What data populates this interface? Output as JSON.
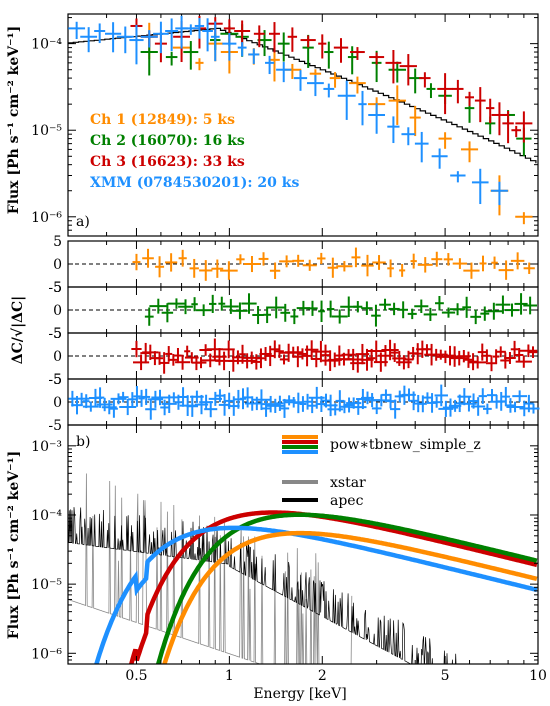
{
  "chart_data": [
    {
      "type": "scatter",
      "panel_label": "a)",
      "ylabel": "Flux [Ph s⁻¹ cm⁻² keV⁻¹]",
      "xscale": "log",
      "yscale": "log",
      "xlim": [
        0.3,
        10
      ],
      "ylim": [
        6e-07,
        0.00022
      ],
      "y_tick_labels": [
        "10⁻⁴",
        "10⁻⁵",
        "10⁻⁶"
      ],
      "y_tick_values": [
        0.0001,
        1e-05,
        1e-06
      ],
      "legend_placement": "lower-left",
      "series": [
        {
          "name": "Ch 1 (12849): 5 ks",
          "color": "#ff8c00",
          "x": [
            0.55,
            0.7,
            0.8,
            0.9,
            1.0,
            1.2,
            1.4,
            1.6,
            1.9,
            2.2,
            2.6,
            3.0,
            3.5,
            4.0,
            5.0,
            6.0,
            7.5,
            9.0
          ],
          "y": [
            0.00012,
            9e-05,
            6e-05,
            0.0001,
            8e-05,
            7.5e-05,
            6.5e-05,
            5e-05,
            4.5e-05,
            4e-05,
            3.5e-05,
            2e-05,
            2.2e-05,
            1.4e-05,
            8e-06,
            6e-06,
            2e-06,
            1e-06
          ]
        },
        {
          "name": "Ch 2 (16070): 16 ks",
          "color": "#008000",
          "x": [
            0.55,
            0.65,
            0.75,
            0.9,
            1.0,
            1.1,
            1.3,
            1.5,
            1.8,
            2.1,
            2.5,
            3.0,
            3.5,
            4.0,
            4.5,
            5.0,
            6.0,
            7.0,
            8.0,
            9.0
          ],
          "y": [
            8e-05,
            7e-05,
            8e-05,
            0.00011,
            0.00013,
            0.00012,
            0.00011,
            0.0001,
            9e-05,
            8e-05,
            7e-05,
            6e-05,
            5e-05,
            4e-05,
            3e-05,
            2.5e-05,
            1.8e-05,
            1.2e-05,
            1.5e-05,
            8e-06
          ]
        },
        {
          "name": "Ch 3 (16623): 33 ks",
          "color": "#cc0000",
          "x": [
            0.5,
            0.55,
            0.6,
            0.7,
            0.8,
            0.9,
            1.0,
            1.1,
            1.25,
            1.4,
            1.6,
            1.8,
            2.0,
            2.3,
            2.6,
            3.0,
            3.4,
            3.8,
            4.3,
            5.0,
            5.5,
            6.0,
            6.5,
            7.0,
            7.5,
            8.0,
            8.5,
            9.0
          ],
          "y": [
            0.00016,
            0.00012,
            0.0001,
            0.00012,
            0.00015,
            0.00017,
            0.00015,
            0.00014,
            0.00013,
            0.00013,
            0.00012,
            0.00011,
            0.0001,
            9e-05,
            8e-05,
            7e-05,
            6e-05,
            5.5e-05,
            4e-05,
            3e-05,
            3e-05,
            2.4e-05,
            2.2e-05,
            1.8e-05,
            1.5e-05,
            1.2e-05,
            1e-05,
            1.2e-05
          ]
        },
        {
          "name": "XMM (0784530201): 20 ks",
          "color": "#1e90ff",
          "x": [
            0.32,
            0.35,
            0.38,
            0.42,
            0.46,
            0.5,
            0.55,
            0.6,
            0.65,
            0.7,
            0.75,
            0.8,
            0.85,
            0.9,
            1.0,
            1.1,
            1.2,
            1.35,
            1.5,
            1.7,
            1.9,
            2.1,
            2.4,
            2.7,
            3.0,
            3.4,
            3.8,
            4.2,
            4.8,
            5.5,
            6.5,
            7.5
          ],
          "y": [
            0.00015,
            0.00012,
            0.00014,
            0.00013,
            0.00012,
            0.00011,
            0.00012,
            0.00013,
            0.00014,
            0.00015,
            0.00015,
            0.00016,
            0.00014,
            0.00012,
            0.0001,
            9e-05,
            7.5e-05,
            6e-05,
            5e-05,
            4e-05,
            3.5e-05,
            3e-05,
            2.5e-05,
            2e-05,
            1.5e-05,
            1.1e-05,
            9e-06,
            7e-06,
            5e-06,
            3e-06,
            2.5e-06,
            2e-06
          ]
        }
      ]
    },
    {
      "type": "scatter",
      "panel": "residuals",
      "ylabel": "ΔC/√|ΔC|",
      "xscale": "log",
      "xlim": [
        0.3,
        10
      ],
      "ylim": [
        -5,
        5
      ],
      "y_tick_labels": [
        "5",
        "0",
        "-5"
      ],
      "series_colors": [
        "#ff8c00",
        "#008000",
        "#cc0000",
        "#1e90ff"
      ]
    },
    {
      "type": "line",
      "panel_label": "b)",
      "ylabel": "Flux [Ph s⁻¹ cm⁻² keV⁻¹]",
      "xlabel": "Energy [keV]",
      "xscale": "log",
      "yscale": "log",
      "xlim": [
        0.3,
        10
      ],
      "ylim": [
        7e-07,
        0.002
      ],
      "x_tick_labels": [
        "0.5",
        "1",
        "2",
        "5",
        "10"
      ],
      "x_tick_values": [
        0.5,
        1,
        2,
        5,
        10
      ],
      "y_tick_labels": [
        "10⁻³",
        "10⁻⁴",
        "10⁻⁵",
        "10⁻⁶"
      ],
      "y_tick_values": [
        0.001,
        0.0001,
        1e-05,
        1e-06
      ],
      "legend_placement": "top-right",
      "legend": [
        {
          "name": "pow∗tbnew_simple_z",
          "colors": [
            "#ff8c00",
            "#cc0000",
            "#008000",
            "#1e90ff"
          ]
        },
        {
          "name": "xstar",
          "colors": [
            "#888888"
          ]
        },
        {
          "name": "apec",
          "colors": [
            "#000000"
          ]
        }
      ],
      "model_peaks": [
        {
          "color": "#cc0000",
          "peak_energy": 1.2,
          "peak_flux": 0.000105
        },
        {
          "color": "#008000",
          "peak_energy": 1.25,
          "peak_flux": 8.5e-05
        },
        {
          "color": "#1e90ff",
          "peak_energy": 1.0,
          "peak_flux": 6.5e-05
        },
        {
          "color": "#ff8c00",
          "peak_energy": 1.3,
          "peak_flux": 4.8e-05
        }
      ]
    }
  ]
}
